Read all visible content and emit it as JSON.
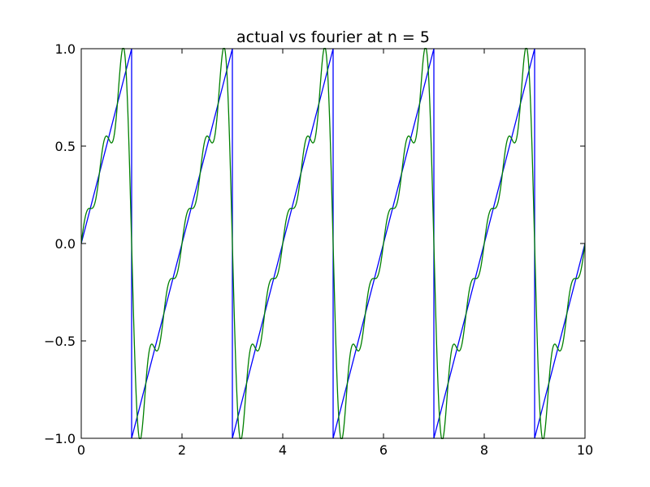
{
  "chart_data": {
    "type": "line",
    "title": "actual vs fourier at n = 5",
    "xlabel": "",
    "ylabel": "",
    "xlim": [
      0,
      10
    ],
    "ylim": [
      -1.0,
      1.0
    ],
    "grid": false,
    "x_ticks": [
      0,
      2,
      4,
      6,
      8,
      10
    ],
    "x_tick_labels": [
      "0",
      "2",
      "4",
      "6",
      "8",
      "10"
    ],
    "y_ticks": [
      -1.0,
      -0.5,
      0.0,
      0.5,
      1.0
    ],
    "y_tick_labels": [
      "−1.0",
      "−0.5",
      "0.0",
      "0.5",
      "1.0"
    ],
    "series": [
      {
        "color": "#0000ff",
        "description_kind": "sawtooth",
        "x": [
          0,
          1,
          1,
          3,
          3,
          5,
          5,
          7,
          7,
          9,
          9,
          10
        ],
        "y": [
          0,
          1,
          -1,
          1,
          -1,
          1,
          -1,
          1,
          -1,
          1,
          -1,
          0
        ]
      },
      {
        "color": "#008000",
        "description_kind": "fourier-partial-sum",
        "period": 2,
        "harmonics": 5,
        "x_range": [
          0,
          10
        ]
      }
    ]
  }
}
